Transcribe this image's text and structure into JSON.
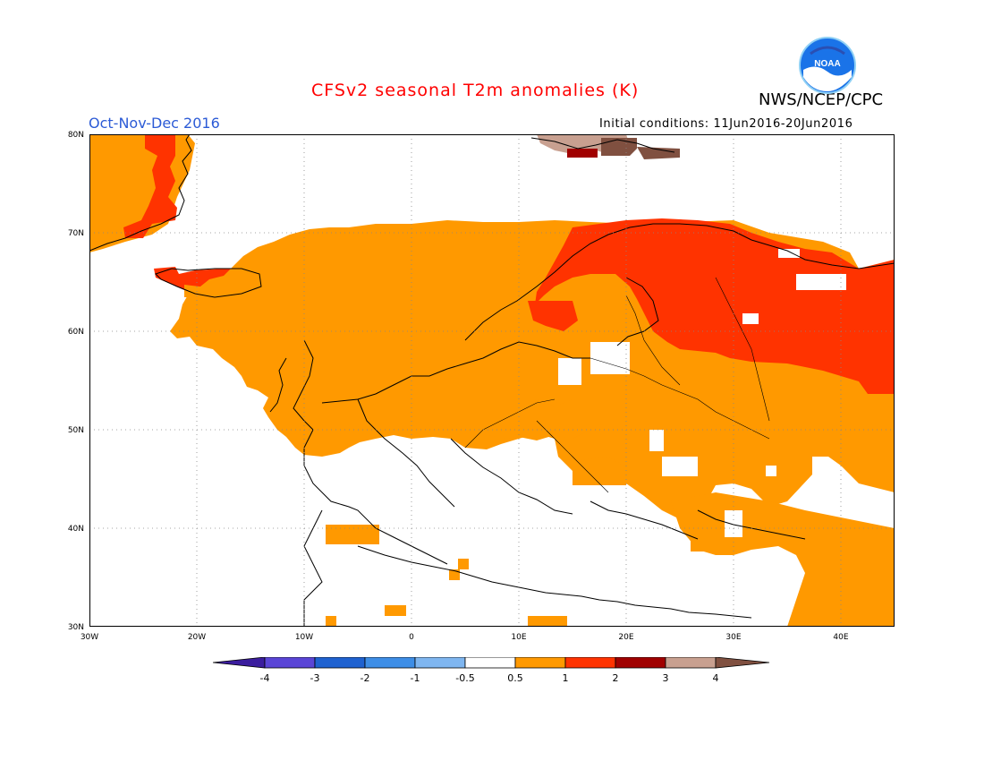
{
  "header": {
    "title": "CFSv2 seasonal T2m anomalies (K)",
    "agency": "NWS/NCEP/CPC",
    "period": "Oct-Nov-Dec 2016",
    "initial_conditions": "Initial conditions: 11Jun2016-20Jun2016"
  },
  "logo": {
    "text": "NOAA"
  },
  "map": {
    "region": "Europe",
    "lon_range": [
      -30,
      45
    ],
    "lat_range": [
      30,
      80
    ],
    "grid": "dotted",
    "y_ticks": [
      "30N",
      "40N",
      "50N",
      "60N",
      "70N",
      "80N"
    ],
    "x_ticks": [
      "30W",
      "20W",
      "10W",
      "0",
      "10E",
      "20E",
      "30E",
      "40E"
    ]
  },
  "colorbar": {
    "unit": "K",
    "labels": [
      "-4",
      "-3",
      "-2",
      "-1",
      "-0.5",
      "0.5",
      "1",
      "2",
      "3",
      "4"
    ],
    "colors": [
      "#3b1d9e",
      "#5a45d6",
      "#1f62d0",
      "#3e8ee6",
      "#7fb6f0",
      "#ffffff",
      "#ff9900",
      "#ff3300",
      "#a00000",
      "#c8a090",
      "#805040"
    ]
  },
  "legend_colors": {
    "anom_0_5_1": "#ff9900",
    "anom_1_2": "#ff3300",
    "anom_2_3": "#a00000",
    "anom_3_4": "#c8a090",
    "anom_gt4": "#805040"
  }
}
